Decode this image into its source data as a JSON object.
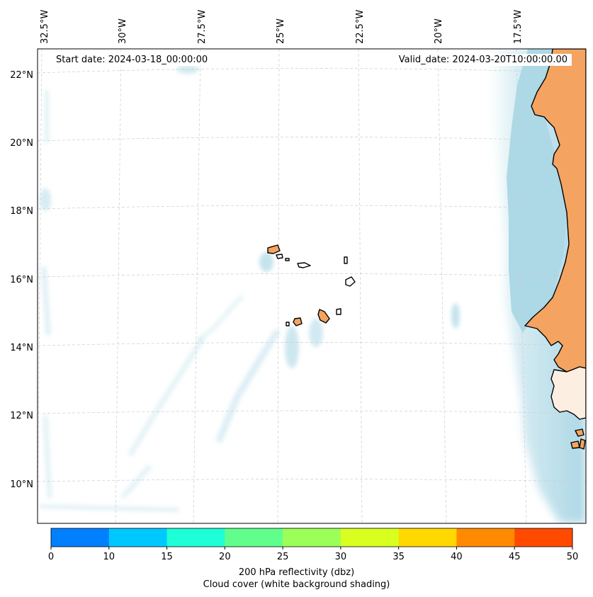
{
  "header": {
    "start_date_label": "Start date: 2024-03-18_00:00:00",
    "valid_date_label": "Valid_date: 2024-03-20T10:00:00.00"
  },
  "axes": {
    "longitude_labels": [
      "32.5°W",
      "30°W",
      "27.5°W",
      "25°W",
      "22.5°W",
      "20°W",
      "17.5°W"
    ],
    "latitude_labels": [
      "22°N",
      "20°N",
      "18°N",
      "16°N",
      "14°N",
      "12°N",
      "10°N"
    ]
  },
  "colorbar": {
    "tick_labels": [
      "0",
      "10",
      "15",
      "20",
      "25",
      "30",
      "35",
      "40",
      "45",
      "50"
    ],
    "colors": [
      "#0080ff",
      "#00c8ff",
      "#1effd8",
      "#60ff8c",
      "#9cff58",
      "#d8ff20",
      "#ffd800",
      "#ff8a00",
      "#ff4a00"
    ],
    "label_line1": "200 hPa reflectivity (dbz)",
    "label_line2": "Cloud cover (white background shading)"
  },
  "colors": {
    "land": "#f4a460",
    "cloud": "#add8e6",
    "gridline": "#cccccc"
  }
}
